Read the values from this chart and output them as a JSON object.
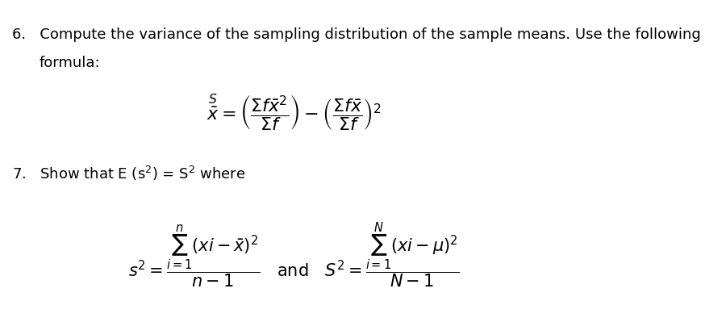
{
  "background_color": "#ffffff",
  "item6_text": "6.   Compute the variance of the sampling distribution of the sample means. Use the following\n      formula:",
  "item7_text": "7.   Show that E (s²) = S² where",
  "formula6": "$^S\\bar{x}=\\left(\\dfrac{\\Sigma f\\bar{x}^2}{\\Sigma f}\\right)-\\left(\\dfrac{\\Sigma f\\bar{x}}{\\Sigma f}\\right)^2$",
  "formula7": "$s^2 = \\dfrac{\\sum_{i=1}^{n}(xi-\\bar{x})^2}{n-1} \\quad \\text{and} \\quad S^2 = \\dfrac{\\sum_{i=1}^{N}(xi-\\mu)^2}{N-1}$",
  "text_color": "#000000",
  "fontsize_body": 13,
  "fontsize_formula": 14
}
